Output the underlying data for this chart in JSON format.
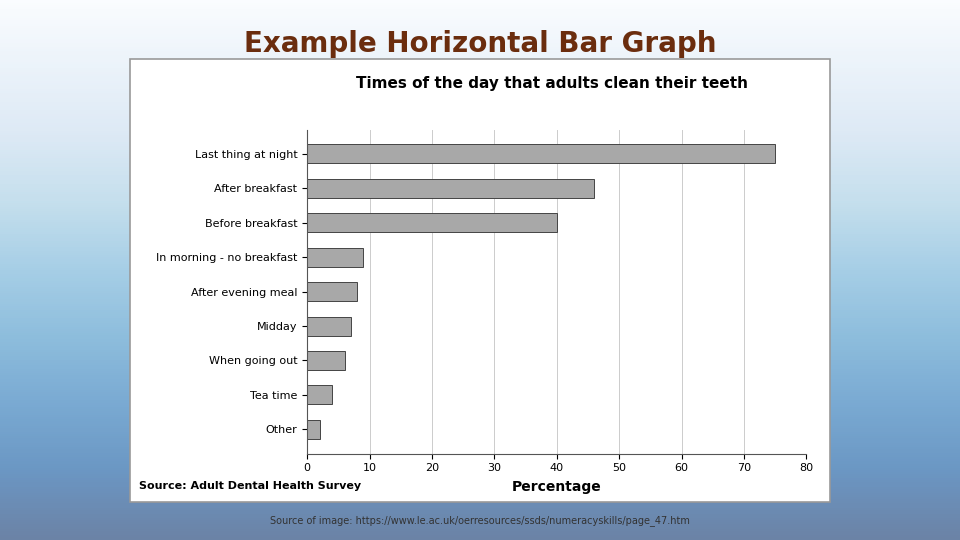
{
  "title": "Example Horizontal Bar Graph",
  "chart_title": "Times of the day that adults clean their teeth",
  "categories": [
    "Other",
    "Tea time",
    "When going out",
    "Midday",
    "After evening meal",
    "In morning - no breakfast",
    "Before breakfast",
    "After breakfast",
    "Last thing at night"
  ],
  "values": [
    2,
    4,
    6,
    7,
    8,
    9,
    40,
    46,
    75
  ],
  "bar_color": "#a8a8a8",
  "bar_edge_color": "#444444",
  "xlabel": "Percentage",
  "xlim": [
    0,
    80
  ],
  "xticks": [
    0,
    10,
    20,
    30,
    40,
    50,
    60,
    70,
    80
  ],
  "source_text": "Source: Adult Dental Health Survey",
  "source_url_text": "Source of image: https://www.le.ac.uk/oerresources/ssds/numeracyskills/page_47.htm",
  "bg_top_color": "#7a9cbf",
  "bg_bottom_color": "#b8d0e8",
  "title_color": "#6b2d0e",
  "title_fontsize": 20,
  "chart_title_fontsize": 11,
  "tick_fontsize": 8,
  "xlabel_fontsize": 10,
  "source_fontsize": 8,
  "url_fontsize": 7
}
